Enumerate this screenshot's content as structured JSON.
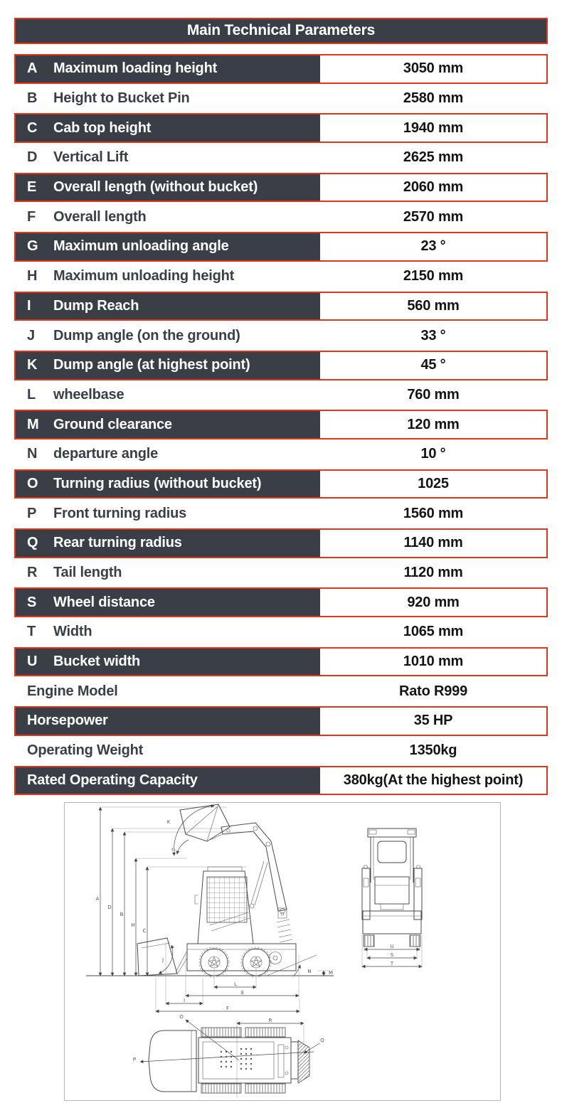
{
  "header": {
    "title": "Main Technical Parameters"
  },
  "table": {
    "rows": [
      {
        "letter": "A",
        "label": "Maximum loading height",
        "value": "3050 mm",
        "dark": true
      },
      {
        "letter": "B",
        "label": "Height to Bucket Pin",
        "value": "2580 mm",
        "dark": false
      },
      {
        "letter": "C",
        "label": "Cab top height",
        "value": "1940 mm",
        "dark": true
      },
      {
        "letter": "D",
        "label": "Vertical Lift",
        "value": "2625 mm",
        "dark": false
      },
      {
        "letter": "E",
        "label": "Overall length (without bucket)",
        "value": "2060 mm",
        "dark": true
      },
      {
        "letter": "F",
        "label": "Overall length",
        "value": "2570 mm",
        "dark": false
      },
      {
        "letter": "G",
        "label": "Maximum unloading angle",
        "value": "23 °",
        "dark": true
      },
      {
        "letter": "H",
        "label": "Maximum unloading height",
        "value": "2150 mm",
        "dark": false
      },
      {
        "letter": "I",
        "label": "Dump Reach",
        "value": "560 mm",
        "dark": true
      },
      {
        "letter": "J",
        "label": "Dump angle (on the ground)",
        "value": "33 °",
        "dark": false
      },
      {
        "letter": "K",
        "label": "Dump angle (at highest point)",
        "value": "45 °",
        "dark": true
      },
      {
        "letter": "L",
        "label": "wheelbase",
        "value": "760 mm",
        "dark": false
      },
      {
        "letter": "M",
        "label": "Ground clearance",
        "value": "120 mm",
        "dark": true
      },
      {
        "letter": "N",
        "label": "departure angle",
        "value": "10 °",
        "dark": false
      },
      {
        "letter": "O",
        "label": "Turning radius (without bucket)",
        "value": "1025",
        "dark": true
      },
      {
        "letter": "P",
        "label": "Front turning radius",
        "value": "1560 mm",
        "dark": false
      },
      {
        "letter": "Q",
        "label": "Rear turning radius",
        "value": "1140 mm",
        "dark": true
      },
      {
        "letter": "R",
        "label": "Tail length",
        "value": "1120 mm",
        "dark": false
      },
      {
        "letter": "S",
        "label": "Wheel distance",
        "value": "920 mm",
        "dark": true
      },
      {
        "letter": "T",
        "label": "Width",
        "value": "1065 mm",
        "dark": false
      },
      {
        "letter": "U",
        "label": "Bucket width",
        "value": "1010 mm",
        "dark": true
      },
      {
        "letter": "",
        "label": "Engine Model",
        "value": "Rato R999",
        "dark": false
      },
      {
        "letter": "",
        "label": "Horsepower",
        "value": "35 HP",
        "dark": true
      },
      {
        "letter": "",
        "label": "Operating Weight",
        "value": "1350kg",
        "dark": false
      },
      {
        "letter": "",
        "label": "Rated Operating Capacity",
        "value": "380kg(At the highest point)",
        "dark": true
      }
    ]
  },
  "colors": {
    "row_dark_bg": "#3a3f47",
    "accent_red_border": "#e43517",
    "value_text": "#141414",
    "label_text": "#3a3f47",
    "diagram_line": "#4a4a4a",
    "diagram_frame": "#b5b5b5"
  },
  "diagram": {
    "side_vertical_dims": [
      "A",
      "D",
      "B",
      "H",
      "C"
    ],
    "side_angle_dims": [
      "K",
      "G",
      "J",
      "N",
      "M"
    ],
    "side_horizontal_dims": [
      "L",
      "E",
      "I",
      "F"
    ],
    "front_dims": [
      "U",
      "S",
      "T"
    ],
    "top_dims": [
      "O",
      "R",
      "P",
      "Q"
    ]
  }
}
